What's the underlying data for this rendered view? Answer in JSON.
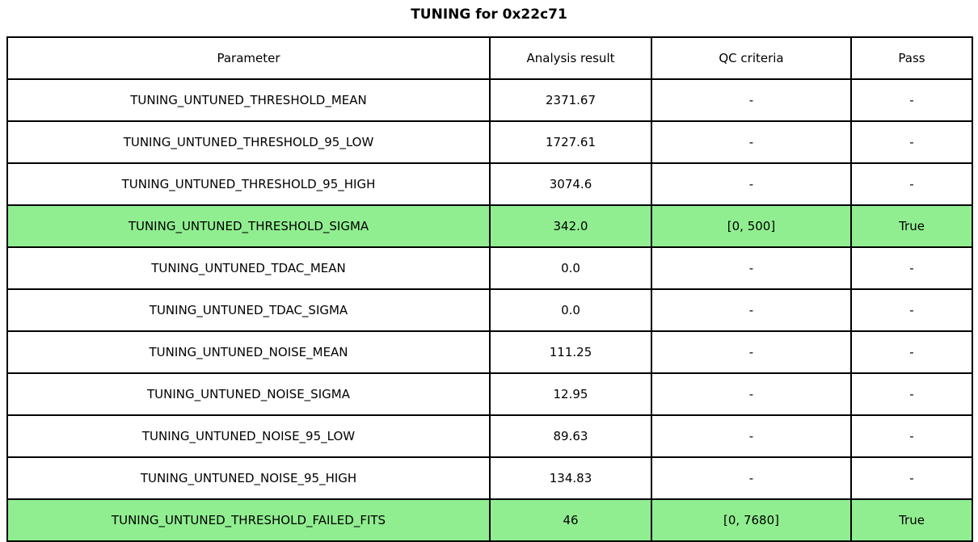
{
  "title": "TUNING for 0x22c71",
  "colors": {
    "highlight": "#90ee90",
    "border": "#000000",
    "background": "#ffffff",
    "text": "#000000"
  },
  "chart_data": {
    "type": "table",
    "title": "TUNING for 0x22c71",
    "columns": [
      "Parameter",
      "Analysis result",
      "QC criteria",
      "Pass"
    ],
    "rows": [
      [
        "TUNING_UNTUNED_THRESHOLD_MEAN",
        "2371.67",
        "-",
        "-"
      ],
      [
        "TUNING_UNTUNED_THRESHOLD_95_LOW",
        "1727.61",
        "-",
        "-"
      ],
      [
        "TUNING_UNTUNED_THRESHOLD_95_HIGH",
        "3074.6",
        "-",
        "-"
      ],
      [
        "TUNING_UNTUNED_THRESHOLD_SIGMA",
        "342.0",
        "[0, 500]",
        "True"
      ],
      [
        "TUNING_UNTUNED_TDAC_MEAN",
        "0.0",
        "-",
        "-"
      ],
      [
        "TUNING_UNTUNED_TDAC_SIGMA",
        "0.0",
        "-",
        "-"
      ],
      [
        "TUNING_UNTUNED_NOISE_MEAN",
        "111.25",
        "-",
        "-"
      ],
      [
        "TUNING_UNTUNED_NOISE_SIGMA",
        "12.95",
        "-",
        "-"
      ],
      [
        "TUNING_UNTUNED_NOISE_95_LOW",
        "89.63",
        "-",
        "-"
      ],
      [
        "TUNING_UNTUNED_NOISE_95_HIGH",
        "134.83",
        "-",
        "-"
      ],
      [
        "TUNING_UNTUNED_THRESHOLD_FAILED_FITS",
        "46",
        "[0, 7680]",
        "True"
      ]
    ],
    "highlighted_rows": [
      3,
      10
    ],
    "highlight_color": "#90ee90",
    "grid": true,
    "legend": false
  }
}
